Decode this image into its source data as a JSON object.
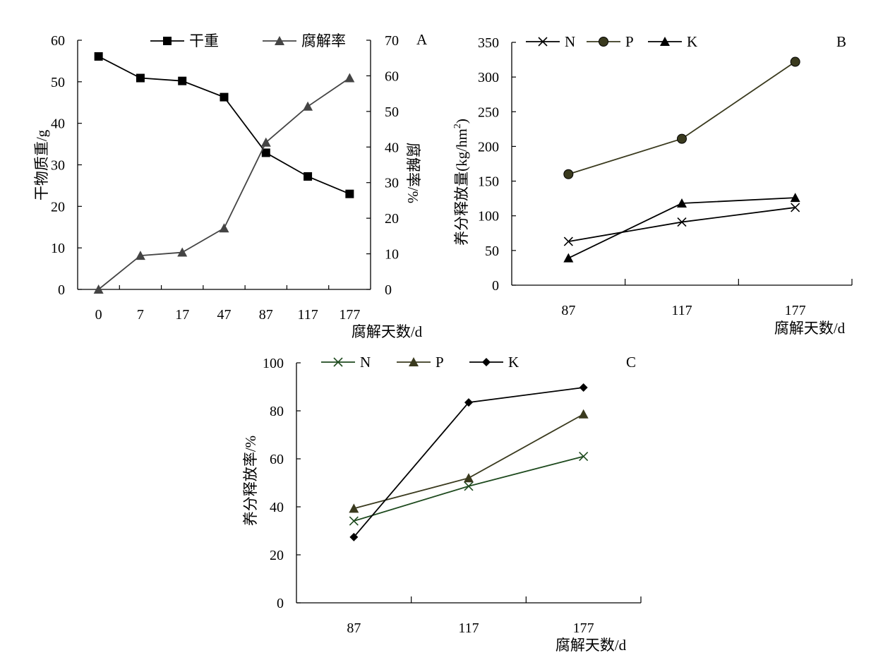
{
  "chart_data": [
    {
      "panel": "A",
      "type": "line",
      "x": [
        "0",
        "7",
        "17",
        "47",
        "87",
        "117",
        "177"
      ],
      "xlabel": "腐解天数/d",
      "ylabel": "干物质重/g",
      "y2label": "腐解率/%",
      "ylim": [
        0,
        60
      ],
      "yticks": [
        0,
        10,
        20,
        30,
        40,
        50,
        60
      ],
      "y2lim": [
        0,
        70
      ],
      "y2ticks": [
        0,
        10,
        20,
        30,
        40,
        50,
        60,
        70
      ],
      "legend_position": "top",
      "series": [
        {
          "name": "干重",
          "axis": "left",
          "marker": "square",
          "color": "#000000",
          "values": [
            56.1,
            50.9,
            50.2,
            46.3,
            32.9,
            27.2,
            23.0
          ]
        },
        {
          "name": "腐解率",
          "axis": "right",
          "marker": "triangle",
          "color": "#444444",
          "values": [
            0,
            9.5,
            10.4,
            17.2,
            41.3,
            51.4,
            59.4
          ]
        }
      ]
    },
    {
      "panel": "B",
      "type": "line",
      "x": [
        "87",
        "117",
        "177"
      ],
      "xlabel": "腐解天数/d",
      "ylabel_main": "养分释放量(kg/hm",
      "ylabel_sup": "2",
      "ylabel_end": ")",
      "ylim": [
        0,
        350
      ],
      "yticks": [
        0,
        50,
        100,
        150,
        200,
        250,
        300,
        350
      ],
      "legend_position": "top-left",
      "series": [
        {
          "name": "N",
          "marker": "x",
          "color": "#000000",
          "values": [
            63,
            91,
            112
          ]
        },
        {
          "name": "P",
          "marker": "circle",
          "color": "#3a3a1e",
          "values": [
            160,
            211,
            322
          ]
        },
        {
          "name": "K",
          "marker": "triangle",
          "color": "#000000",
          "values": [
            39,
            118,
            126
          ]
        }
      ]
    },
    {
      "panel": "C",
      "type": "line",
      "x": [
        "87",
        "117",
        "177"
      ],
      "xlabel": "腐解天数/d",
      "ylabel": "养分释放率/%",
      "ylim": [
        0,
        100
      ],
      "yticks": [
        0,
        20,
        40,
        60,
        80,
        100
      ],
      "legend_position": "top-left",
      "series": [
        {
          "name": "N",
          "marker": "x",
          "color": "#1e4a1e",
          "values": [
            34.1,
            48.6,
            61.0
          ]
        },
        {
          "name": "P",
          "marker": "triangle",
          "color": "#3a3a1e",
          "values": [
            39.3,
            52.0,
            78.6
          ]
        },
        {
          "name": "K",
          "marker": "diamond",
          "color": "#000000",
          "values": [
            27.4,
            83.5,
            89.7
          ]
        }
      ]
    }
  ]
}
